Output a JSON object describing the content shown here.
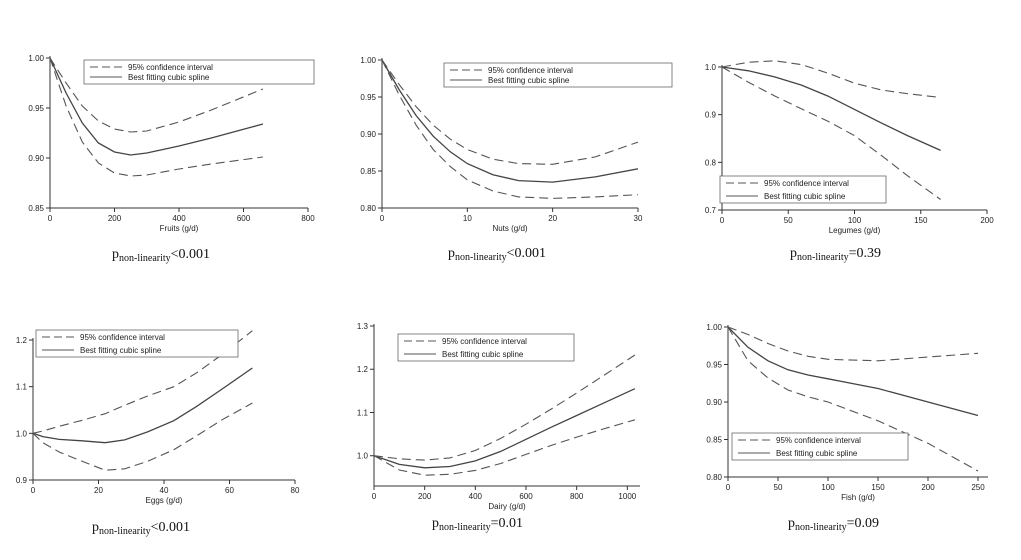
{
  "chart_data": [
    {
      "type": "line",
      "xlabel": "Fruits (g/d)",
      "xticks": [
        0,
        200,
        400,
        600,
        800
      ],
      "yticks": [
        0.85,
        0.9,
        0.95,
        1.0
      ],
      "xlim": [
        0,
        800
      ],
      "ylim": [
        0.85,
        1.0
      ],
      "legend": "top-right",
      "legend_labels": [
        "95% confidence interval",
        "Best fitting cubic spline"
      ],
      "series": [
        {
          "name": "Best fitting cubic spline",
          "style": "solid",
          "x": [
            0,
            50,
            100,
            150,
            200,
            250,
            300,
            400,
            500,
            660
          ],
          "y": [
            1.0,
            0.965,
            0.935,
            0.915,
            0.906,
            0.903,
            0.905,
            0.912,
            0.92,
            0.934
          ]
        },
        {
          "name": "95% confidence interval",
          "style": "dashed",
          "x": [
            0,
            50,
            100,
            150,
            200,
            250,
            300,
            400,
            500,
            660
          ],
          "y": [
            1.0,
            0.975,
            0.952,
            0.937,
            0.929,
            0.926,
            0.927,
            0.936,
            0.948,
            0.969
          ]
        },
        {
          "name": "95% confidence interval",
          "style": "dashed",
          "x": [
            0,
            50,
            100,
            150,
            200,
            250,
            300,
            400,
            500,
            660
          ],
          "y": [
            1.0,
            0.952,
            0.916,
            0.895,
            0.885,
            0.882,
            0.883,
            0.889,
            0.894,
            0.901
          ]
        }
      ],
      "p_prefix": "p",
      "p_sub": "non-linearity",
      "p_value": "<0.001"
    },
    {
      "type": "line",
      "xlabel": "Nuts (g/d)",
      "xticks": [
        0,
        10,
        20,
        30
      ],
      "yticks": [
        0.8,
        0.85,
        0.9,
        0.95,
        1.0
      ],
      "xlim": [
        0,
        30
      ],
      "ylim": [
        0.8,
        1.0
      ],
      "legend": "top-right",
      "legend_labels": [
        "95% confidence interval",
        "Best fitting cubic spline"
      ],
      "series": [
        {
          "name": "Best fitting cubic spline",
          "style": "solid",
          "x": [
            0,
            2,
            4,
            6,
            8,
            10,
            13,
            16,
            20,
            25,
            30
          ],
          "y": [
            1.0,
            0.96,
            0.925,
            0.897,
            0.876,
            0.86,
            0.845,
            0.837,
            0.835,
            0.842,
            0.853
          ]
        },
        {
          "name": "95% confidence interval",
          "style": "dashed",
          "x": [
            0,
            2,
            4,
            6,
            8,
            10,
            13,
            16,
            20,
            25,
            30
          ],
          "y": [
            1.0,
            0.967,
            0.937,
            0.912,
            0.893,
            0.879,
            0.866,
            0.86,
            0.859,
            0.869,
            0.889
          ]
        },
        {
          "name": "95% confidence interval",
          "style": "dashed",
          "x": [
            0,
            2,
            4,
            6,
            8,
            10,
            13,
            16,
            20,
            25,
            30
          ],
          "y": [
            1.0,
            0.953,
            0.912,
            0.879,
            0.856,
            0.838,
            0.823,
            0.815,
            0.813,
            0.815,
            0.818
          ]
        }
      ],
      "p_prefix": "p",
      "p_sub": "non-linearity",
      "p_value": "<0.001"
    },
    {
      "type": "line",
      "xlabel": "Legumes (g/d)",
      "xticks": [
        0,
        50,
        100,
        150,
        200
      ],
      "yticks": [
        0.7,
        0.8,
        0.9,
        1.0
      ],
      "xlim": [
        0,
        200
      ],
      "ylim": [
        0.7,
        1.0
      ],
      "legend": "bottom-left",
      "legend_labels": [
        "95% confidence interval",
        "Best fitting cubic spline"
      ],
      "series": [
        {
          "name": "Best fitting cubic spline",
          "style": "solid",
          "x": [
            0,
            20,
            40,
            60,
            80,
            100,
            120,
            140,
            165
          ],
          "y": [
            1.0,
            0.992,
            0.979,
            0.962,
            0.939,
            0.911,
            0.883,
            0.856,
            0.825
          ]
        },
        {
          "name": "95% confidence interval",
          "style": "dashed",
          "x": [
            0,
            20,
            40,
            60,
            80,
            100,
            120,
            140,
            165
          ],
          "y": [
            1.0,
            1.01,
            1.013,
            1.005,
            0.987,
            0.966,
            0.952,
            0.944,
            0.936
          ]
        },
        {
          "name": "95% confidence interval",
          "style": "dashed",
          "x": [
            0,
            20,
            40,
            60,
            80,
            100,
            120,
            140,
            165
          ],
          "y": [
            1.0,
            0.968,
            0.939,
            0.912,
            0.886,
            0.856,
            0.815,
            0.772,
            0.722
          ]
        }
      ],
      "p_prefix": "p",
      "p_sub": "non-linearity",
      "p_value": "=0.39"
    },
    {
      "type": "line",
      "xlabel": "Eggs (g/d)",
      "xticks": [
        0,
        20,
        40,
        60,
        80
      ],
      "yticks": [
        0.9,
        1.0,
        1.1,
        1.2
      ],
      "xlim": [
        0,
        80
      ],
      "ylim": [
        0.9,
        1.2
      ],
      "legend": "top-left",
      "legend_labels": [
        "95% confidence interval",
        "Best fitting cubic spline"
      ],
      "series": [
        {
          "name": "Best fitting cubic spline",
          "style": "solid",
          "x": [
            0,
            3,
            8,
            15,
            22,
            28,
            35,
            43,
            50,
            58,
            67
          ],
          "y": [
            1.0,
            0.993,
            0.987,
            0.984,
            0.98,
            0.986,
            1.003,
            1.027,
            1.058,
            1.096,
            1.14
          ]
        },
        {
          "name": "95% confidence interval",
          "style": "dashed",
          "x": [
            0,
            3,
            8,
            15,
            22,
            28,
            35,
            43,
            50,
            58,
            67
          ],
          "y": [
            1.0,
            1.005,
            1.015,
            1.028,
            1.042,
            1.06,
            1.08,
            1.1,
            1.13,
            1.17,
            1.22
          ]
        },
        {
          "name": "95% confidence interval",
          "style": "dashed",
          "x": [
            0,
            3,
            8,
            15,
            22,
            28,
            35,
            43,
            50,
            58,
            67
          ],
          "y": [
            1.0,
            0.98,
            0.96,
            0.94,
            0.921,
            0.924,
            0.94,
            0.965,
            0.995,
            1.03,
            1.065
          ]
        }
      ],
      "p_prefix": "p",
      "p_sub": "non-linearity",
      "p_value": "<0.001"
    },
    {
      "type": "line",
      "xlabel": "Dairy (g/d)",
      "xticks": [
        0,
        200,
        400,
        600,
        800,
        1000
      ],
      "yticks": [
        1.0,
        1.1,
        1.2,
        1.3
      ],
      "xlim": [
        0,
        1050
      ],
      "ylim": [
        0.93,
        1.3
      ],
      "legend": "top-left",
      "legend_labels": [
        "95% confidence interval",
        "Best fitting cubic spline"
      ],
      "series": [
        {
          "name": "Best fitting cubic spline",
          "style": "solid",
          "x": [
            0,
            100,
            200,
            300,
            400,
            500,
            600,
            700,
            800,
            900,
            1030
          ],
          "y": [
            1.0,
            0.98,
            0.972,
            0.975,
            0.988,
            1.01,
            1.038,
            1.066,
            1.093,
            1.12,
            1.155
          ]
        },
        {
          "name": "95% confidence interval",
          "style": "dashed",
          "x": [
            0,
            100,
            200,
            300,
            400,
            500,
            600,
            700,
            800,
            900,
            1030
          ],
          "y": [
            1.0,
            0.993,
            0.99,
            0.995,
            1.012,
            1.04,
            1.073,
            1.108,
            1.145,
            1.183,
            1.233
          ]
        },
        {
          "name": "95% confidence interval",
          "style": "dashed",
          "x": [
            0,
            100,
            200,
            300,
            400,
            500,
            600,
            700,
            800,
            900,
            1030
          ],
          "y": [
            1.0,
            0.967,
            0.955,
            0.957,
            0.966,
            0.982,
            1.003,
            1.024,
            1.043,
            1.061,
            1.083
          ]
        }
      ],
      "p_prefix": "p",
      "p_sub": "non-linearity",
      "p_value": "=0.01"
    },
    {
      "type": "line",
      "xlabel": "Fish (g/d)",
      "xticks": [
        0,
        50,
        100,
        150,
        200,
        250
      ],
      "yticks": [
        0.8,
        0.85,
        0.9,
        0.95,
        1.0
      ],
      "xlim": [
        0,
        260
      ],
      "ylim": [
        0.8,
        1.0
      ],
      "legend": "bottom-left",
      "legend_labels": [
        "95% confidence interval",
        "Best fitting cubic spline"
      ],
      "series": [
        {
          "name": "Best fitting cubic spline",
          "style": "solid",
          "x": [
            0,
            20,
            40,
            60,
            80,
            100,
            150,
            200,
            250
          ],
          "y": [
            1.0,
            0.973,
            0.955,
            0.943,
            0.936,
            0.931,
            0.918,
            0.9,
            0.882
          ]
        },
        {
          "name": "95% confidence interval",
          "style": "dashed",
          "x": [
            0,
            20,
            40,
            60,
            80,
            100,
            150,
            200,
            250
          ],
          "y": [
            1.0,
            0.99,
            0.978,
            0.968,
            0.961,
            0.957,
            0.955,
            0.96,
            0.965
          ]
        },
        {
          "name": "95% confidence interval",
          "style": "dashed",
          "x": [
            0,
            20,
            40,
            60,
            80,
            100,
            150,
            200,
            250
          ],
          "y": [
            1.0,
            0.955,
            0.932,
            0.916,
            0.907,
            0.9,
            0.875,
            0.845,
            0.808
          ]
        }
      ],
      "p_prefix": "p",
      "p_sub": "non-linearity",
      "p_value": "=0.09"
    }
  ]
}
